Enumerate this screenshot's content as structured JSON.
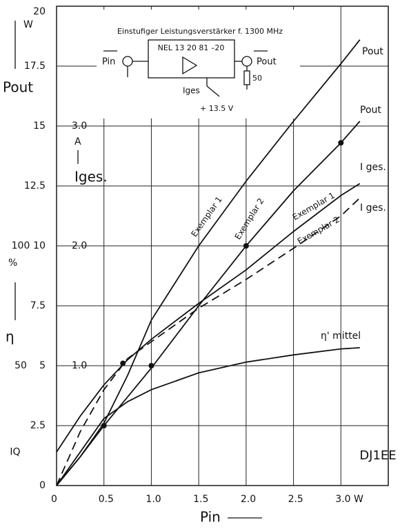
{
  "chart_data": {
    "type": "line",
    "x_label": "Pin",
    "y_label": "Pout",
    "y_unit": "W",
    "y2_label": "Iges.",
    "y2_unit": "A",
    "y3_unit": "%",
    "y3_label": "η",
    "xlim": [
      0,
      3.5
    ],
    "xticks": [
      0,
      0.5,
      {
        "value": 1,
        "label": "1.0"
      },
      1.5,
      {
        "value": 2,
        "label": "2.0"
      },
      2.5,
      {
        "value": 3,
        "label": "3.0 W"
      }
    ],
    "ylim": [
      0,
      20
    ],
    "yticks": [
      0,
      2.5,
      5,
      7.5,
      10,
      12.5,
      15,
      17.5,
      20
    ],
    "y2lim": [
      0,
      4
    ],
    "y2ticks": [
      {
        "value": 1,
        "label": "1.0"
      },
      {
        "value": 2,
        "label": "2.0"
      },
      {
        "value": 3,
        "label": "3.0"
      }
    ],
    "y3lim": [
      0,
      200
    ],
    "y3ticks": [
      50,
      100
    ],
    "grid": true,
    "x": [
      0,
      0.25,
      0.5,
      0.75,
      1.0,
      1.5,
      2.0,
      2.5,
      3.0,
      3.2
    ],
    "series": [
      {
        "name": "Pout",
        "color": "#111",
        "axis": "y",
        "values": [
          0,
          1.2,
          2.6,
          4.6,
          6.9,
          10.0,
          12.7,
          15.2,
          17.6,
          18.6
        ]
      },
      {
        "name": "Pout",
        "color": "#111",
        "axis": "y",
        "values": [
          0,
          1.2,
          2.5,
          3.7,
          4.9,
          7.5,
          10.0,
          12.3,
          14.3,
          15.2
        ]
      },
      {
        "name": "I ges.",
        "color": "#111",
        "axis": "y2",
        "values": [
          0.28,
          0.58,
          0.84,
          1.05,
          1.22,
          1.52,
          1.8,
          2.12,
          2.42,
          2.52
        ]
      },
      {
        "name": "I ges.",
        "color": "#111",
        "axis": "y2",
        "dashed": true,
        "values": [
          0,
          0.45,
          0.8,
          1.06,
          1.2,
          1.48,
          1.72,
          1.98,
          2.25,
          2.4
        ]
      },
      {
        "name": "η' mittel",
        "color": "#111",
        "axis": "y3",
        "values": [
          0,
          14,
          28,
          35,
          40,
          47,
          51.5,
          54.5,
          57,
          57.5
        ]
      }
    ],
    "points": {
      "x": [
        0.5,
        0.7,
        1.0,
        2.0,
        3.0
      ],
      "values": [
        2.5,
        5.1,
        5,
        10,
        14.3
      ]
    },
    "iq": {
      "value": 0.28,
      "label": "IQ"
    },
    "annotations": [
      "Exemplar 1",
      "Exemplar 2",
      "Exemplar 1",
      "Exemplar 2",
      "DJ1EE"
    ]
  },
  "inset": {
    "title": "Einstufiger Leistungsverstärker f. 1300 MHz",
    "device": "NEL 13 20 81 –20",
    "input": "Pin",
    "output": "Pout",
    "current": "Iges",
    "load": "50",
    "supply": "+ 13.5 V"
  }
}
